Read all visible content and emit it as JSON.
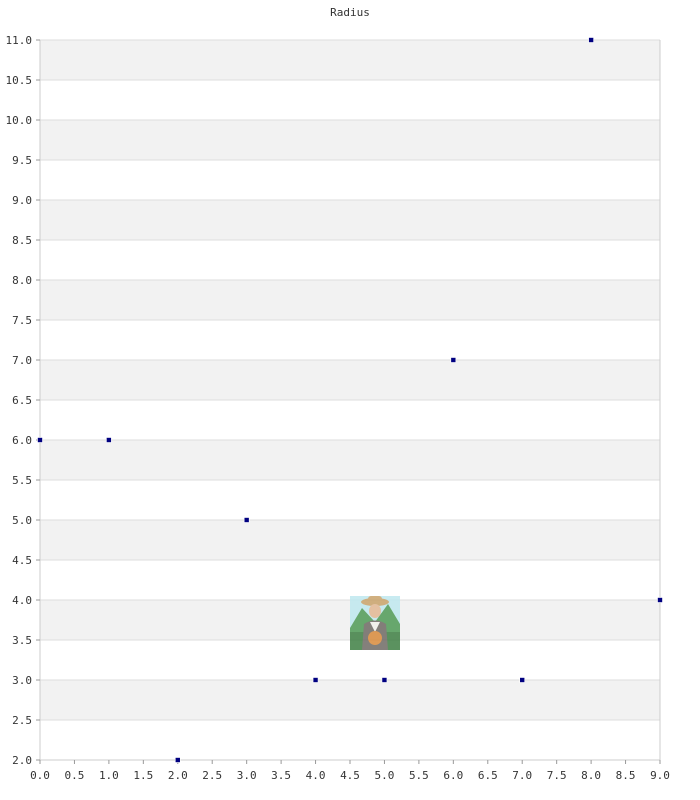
{
  "chart_data": {
    "type": "scatter",
    "title": "Radius",
    "xlabel": "",
    "ylabel": "",
    "xlim": [
      0.0,
      9.0
    ],
    "ylim": [
      2.0,
      11.0
    ],
    "x_ticks": [
      "0.0",
      "0.5",
      "1.0",
      "1.5",
      "2.0",
      "2.5",
      "3.0",
      "3.5",
      "4.0",
      "4.5",
      "5.0",
      "5.5",
      "6.0",
      "6.5",
      "7.0",
      "7.5",
      "8.0",
      "8.5",
      "9.0"
    ],
    "y_ticks": [
      "2.0",
      "2.5",
      "3.0",
      "3.5",
      "4.0",
      "4.5",
      "5.0",
      "5.5",
      "6.0",
      "6.5",
      "7.0",
      "7.5",
      "8.0",
      "8.5",
      "9.0",
      "9.5",
      "10.0",
      "10.5",
      "11.0"
    ],
    "grid": "horizontal bands",
    "legend": "none",
    "points": [
      {
        "x": 0,
        "y": 6
      },
      {
        "x": 1,
        "y": 6
      },
      {
        "x": 2,
        "y": 2
      },
      {
        "x": 3,
        "y": 5
      },
      {
        "x": 4,
        "y": 3
      },
      {
        "x": 5,
        "y": 3
      },
      {
        "x": 6,
        "y": 7
      },
      {
        "x": 7,
        "y": 3
      },
      {
        "x": 8,
        "y": 11
      },
      {
        "x": 9,
        "y": 4
      }
    ],
    "marker_color": "#000080",
    "band_color": "#f2f2f2",
    "axis_color": "#cccccc",
    "watermark_icon": "farmer-portrait-icon"
  }
}
